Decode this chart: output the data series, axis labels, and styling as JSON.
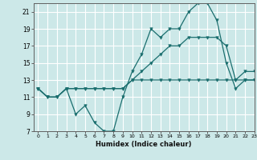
{
  "xlabel": "Humidex (Indice chaleur)",
  "bg_color": "#cce8e8",
  "grid_color": "#ffffff",
  "line_color": "#1a6e6e",
  "ylim": [
    7,
    22
  ],
  "xlim": [
    -0.5,
    23
  ],
  "yticks": [
    7,
    9,
    11,
    13,
    15,
    17,
    19,
    21
  ],
  "xticks": [
    0,
    1,
    2,
    3,
    4,
    5,
    6,
    7,
    8,
    9,
    10,
    11,
    12,
    13,
    14,
    15,
    16,
    17,
    18,
    19,
    20,
    21,
    22,
    23
  ],
  "series": [
    {
      "x": [
        0,
        1,
        2,
        3,
        4,
        5,
        6,
        7,
        8,
        9,
        10,
        11,
        12,
        13,
        14,
        15,
        16,
        17,
        18,
        19,
        20,
        21,
        22,
        23
      ],
      "y": [
        12,
        11,
        11,
        12,
        12,
        12,
        12,
        12,
        12,
        12,
        13,
        13,
        13,
        13,
        13,
        13,
        13,
        13,
        13,
        13,
        13,
        13,
        13,
        13
      ]
    },
    {
      "x": [
        0,
        1,
        2,
        3,
        4,
        5,
        6,
        7,
        8,
        9,
        10,
        11,
        12,
        13,
        14,
        15,
        16,
        17,
        18,
        19,
        20,
        21,
        22,
        23
      ],
      "y": [
        12,
        11,
        11,
        12,
        12,
        12,
        12,
        12,
        12,
        12,
        13,
        14,
        15,
        16,
        17,
        17,
        18,
        18,
        18,
        18,
        17,
        13,
        14,
        14
      ]
    },
    {
      "x": [
        0,
        1,
        2,
        3,
        4,
        5,
        6,
        7,
        8,
        9,
        10,
        11,
        12,
        13,
        14,
        15,
        16,
        17,
        18,
        19,
        20,
        21,
        22,
        23
      ],
      "y": [
        12,
        11,
        11,
        12,
        9,
        10,
        8,
        7,
        7,
        11,
        14,
        16,
        19,
        18,
        19,
        19,
        21,
        22,
        22,
        20,
        15,
        12,
        13,
        13
      ]
    }
  ]
}
